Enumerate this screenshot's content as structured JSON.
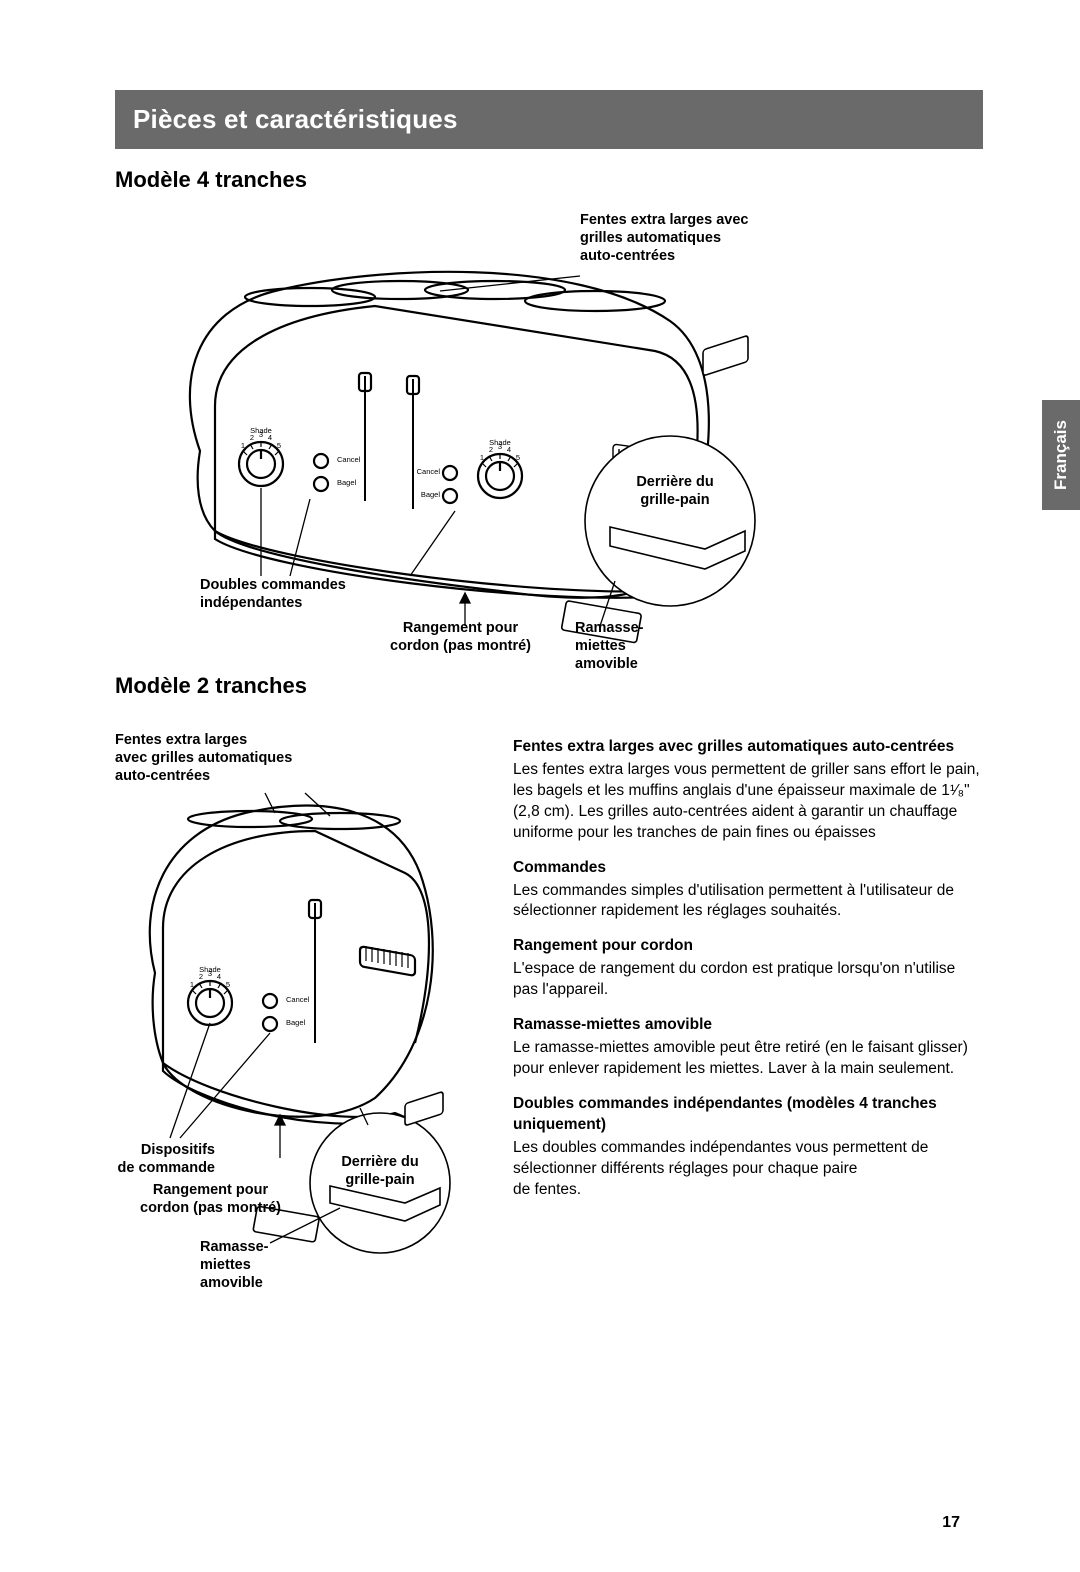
{
  "header": {
    "title": "Pièces et caractéristiques"
  },
  "lang_tab": "Français",
  "model4": {
    "heading": "Modèle 4 tranches",
    "callouts": {
      "slots": "Fentes extra larges avec\ngrilles automatiques\nauto-centrées",
      "back": "Derrière du\ngrille-pain",
      "dual": "Doubles commandes\nindépendantes",
      "cord": "Rangement pour\ncordon (pas montré)",
      "crumb": "Ramasse-\nmiettes\namovible"
    },
    "dial_label": "Shade",
    "btn1": "Cancel",
    "btn2": "Bagel"
  },
  "model2": {
    "heading": "Modèle 2 tranches",
    "callouts": {
      "slots": "Fentes extra larges\navec grilles automatiques\nauto-centrées",
      "controls": "Dispositifs\nde commande",
      "cord": "Rangement pour\ncordon (pas montré)",
      "back": "Derrière du\ngrille-pain",
      "crumb": "Ramasse-\nmiettes\namovible"
    },
    "dial_label": "Shade",
    "btn1": "Cancel",
    "btn2": "Bagel"
  },
  "descriptions": {
    "s1_title": "Fentes extra larges avec grilles automatiques auto-centrées",
    "s1_body": "Les fentes extra larges vous permettent de griller sans effort le pain, les bagels et les muffins anglais d'une épaisseur maximale de 1¹⁄₈\" (2,8 cm). Les grilles auto-centrées aident à garantir un chauffage uniforme pour les tranches de pain fines ou épaisses",
    "s2_title": "Commandes",
    "s2_body": "Les commandes simples d'utilisation permettent à l'utilisateur de sélectionner rapidement les réglages souhaités.",
    "s3_title": "Rangement pour cordon",
    "s3_body": "L'espace de rangement du cordon est pratique lorsqu'on n'utilise pas l'appareil.",
    "s4_title": "Ramasse-miettes amovible",
    "s4_body": "Le ramasse-miettes amovible peut être retiré (en le faisant glisser) pour enlever rapidement les miettes. Laver à la main seulement.",
    "s5_title": "Doubles commandes indépendantes (modèles 4 tranches uniquement)",
    "s5_body": "Les doubles commandes indépendantes vous permettent de sélectionner différents réglages pour chaque paire\nde fentes."
  },
  "page_number": "17",
  "style": {
    "header_bg": "#6a6a6b",
    "header_fg": "#ffffff",
    "text_color": "#000000",
    "page_bg": "#ffffff",
    "heading_fontsize": 26,
    "subhead_fontsize": 22,
    "callout_fontsize": 14.5,
    "body_fontsize": 15.5,
    "lang_tab_fontsize": 17
  }
}
